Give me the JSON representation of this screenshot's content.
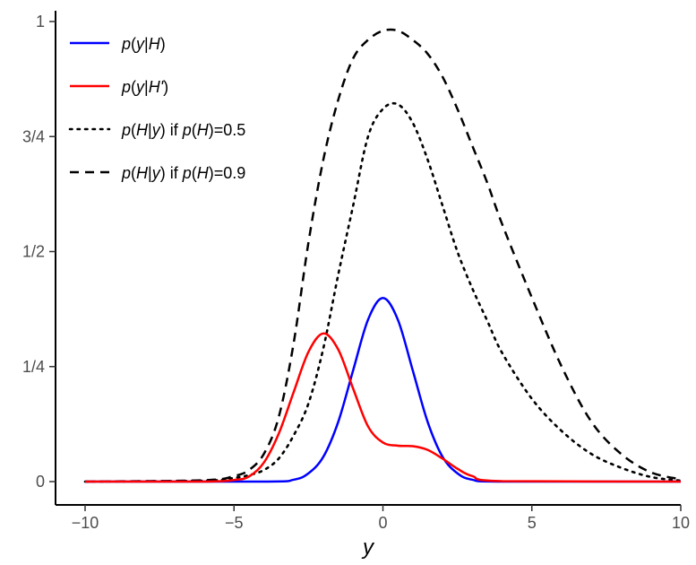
{
  "chart_data": {
    "type": "line",
    "title": "",
    "xlabel": "y",
    "ylabel": "",
    "xlim": [
      -10,
      10
    ],
    "ylim": [
      0,
      1
    ],
    "x_ticks": [
      {
        "value": -10,
        "label": "−10"
      },
      {
        "value": -5,
        "label": "−5"
      },
      {
        "value": 0,
        "label": "0"
      },
      {
        "value": 5,
        "label": "5"
      },
      {
        "value": 10,
        "label": "10"
      }
    ],
    "y_ticks": [
      {
        "value": 0,
        "label": "0"
      },
      {
        "value": 0.25,
        "label": "1/4"
      },
      {
        "value": 0.5,
        "label": "1/2"
      },
      {
        "value": 0.75,
        "label": "3/4"
      },
      {
        "value": 1,
        "label": "1"
      }
    ],
    "grid": false,
    "legend_position": "top-left",
    "series": [
      {
        "name": "p(y|H)",
        "legend": [
          {
            "text": "p",
            "italic": true
          },
          {
            "text": "(",
            "italic": false
          },
          {
            "text": "y",
            "italic": true
          },
          {
            "text": "|",
            "italic": false
          },
          {
            "text": "H",
            "italic": true
          },
          {
            "text": ")",
            "italic": false
          }
        ],
        "color": "#0000ff",
        "dash": "solid",
        "x": [
          -10,
          -4,
          -3,
          -2.5,
          -2,
          -1.5,
          -1,
          -0.5,
          0,
          0.5,
          1,
          1.5,
          2,
          2.5,
          3,
          4,
          10
        ],
        "values": [
          0,
          0.0001,
          0.004,
          0.018,
          0.054,
          0.13,
          0.242,
          0.352,
          0.399,
          0.352,
          0.242,
          0.13,
          0.054,
          0.018,
          0.004,
          0.0001,
          0
        ]
      },
      {
        "name": "p(y|H')",
        "legend": [
          {
            "text": "p",
            "italic": true
          },
          {
            "text": "(",
            "italic": false
          },
          {
            "text": "y",
            "italic": true
          },
          {
            "text": "|",
            "italic": false
          },
          {
            "text": "H'",
            "italic": true
          },
          {
            "text": ")",
            "italic": false
          }
        ],
        "color": "#ff0000",
        "dash": "solid",
        "x": [
          -10,
          -6,
          -5,
          -4.5,
          -4,
          -3.5,
          -3,
          -2.5,
          -2,
          -1.5,
          -1,
          -0.5,
          0,
          0.5,
          1,
          1.5,
          2,
          2.5,
          3,
          4,
          10
        ],
        "values": [
          0,
          0.0001,
          0.0035,
          0.011,
          0.041,
          0.104,
          0.194,
          0.282,
          0.322,
          0.287,
          0.202,
          0.12,
          0.085,
          0.078,
          0.077,
          0.069,
          0.05,
          0.028,
          0.012,
          0.001,
          0
        ]
      },
      {
        "name": "p(H|y) if p(H)=0.5",
        "legend": [
          {
            "text": "p",
            "italic": true
          },
          {
            "text": "(",
            "italic": false
          },
          {
            "text": "H",
            "italic": true
          },
          {
            "text": "|",
            "italic": false
          },
          {
            "text": "y",
            "italic": true
          },
          {
            "text": ") if ",
            "italic": false
          },
          {
            "text": "p",
            "italic": true
          },
          {
            "text": "(",
            "italic": false
          },
          {
            "text": "H",
            "italic": true
          },
          {
            "text": ")=0.5",
            "italic": false
          }
        ],
        "color": "#000000",
        "dash": "dotted",
        "x": [
          -10,
          -6,
          -5,
          -4.5,
          -4,
          -3.5,
          -3,
          -2.5,
          -2,
          -1.5,
          -1,
          -0.5,
          0,
          0.5,
          1,
          1.5,
          2,
          2.5,
          3,
          3.5,
          4,
          5,
          6,
          7,
          8,
          9,
          10
        ],
        "values": [
          0,
          0.002,
          0.008,
          0.014,
          0.025,
          0.05,
          0.1,
          0.17,
          0.29,
          0.45,
          0.6,
          0.75,
          0.81,
          0.82,
          0.78,
          0.7,
          0.6,
          0.5,
          0.42,
          0.35,
          0.28,
          0.18,
          0.11,
          0.06,
          0.03,
          0.01,
          0.002
        ]
      },
      {
        "name": "p(H|y) if p(H)=0.9",
        "legend": [
          {
            "text": "p",
            "italic": true
          },
          {
            "text": "(",
            "italic": false
          },
          {
            "text": "H",
            "italic": true
          },
          {
            "text": "|",
            "italic": false
          },
          {
            "text": "y",
            "italic": true
          },
          {
            "text": ") if ",
            "italic": false
          },
          {
            "text": "p",
            "italic": true
          },
          {
            "text": "(",
            "italic": false
          },
          {
            "text": "H",
            "italic": true
          },
          {
            "text": ")=0.9",
            "italic": false
          }
        ],
        "color": "#000000",
        "dash": "dashed",
        "x": [
          -10,
          -6,
          -5,
          -4.5,
          -4,
          -3.5,
          -3,
          -2.5,
          -2,
          -1.5,
          -1,
          -0.5,
          0,
          0.5,
          1,
          1.5,
          2,
          2.5,
          3,
          3.5,
          4,
          5,
          6,
          7,
          8,
          9,
          10
        ],
        "values": [
          0,
          0.003,
          0.012,
          0.025,
          0.06,
          0.14,
          0.3,
          0.52,
          0.7,
          0.83,
          0.92,
          0.96,
          0.98,
          0.98,
          0.96,
          0.93,
          0.88,
          0.81,
          0.73,
          0.65,
          0.56,
          0.4,
          0.25,
          0.13,
          0.06,
          0.02,
          0.005
        ]
      }
    ]
  }
}
